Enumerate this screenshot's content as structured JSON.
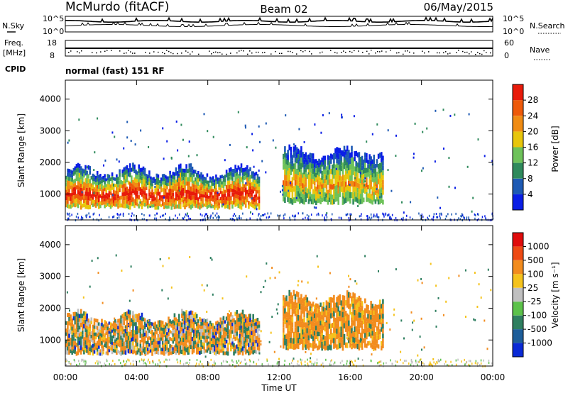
{
  "header": {
    "station": "McMurdo (fitACF)",
    "beam": "Beam 02",
    "date": "06/May/2015"
  },
  "noise_panel": {
    "left_label": "N.Sky",
    "right_label": "N.Search",
    "tick_left_top": "10^5",
    "tick_left_bottom": "10^0",
    "tick_right_top": "10^5",
    "tick_right_bottom": "10^0"
  },
  "freq_panel": {
    "left_label_line1": "Freq.",
    "left_label_line2": "[MHz]",
    "right_label": "Nave",
    "tick_left_top": "18",
    "tick_left_bottom": "8",
    "tick_right_top": "60",
    "tick_right_bottom": "0"
  },
  "cpid": {
    "label": "CPID",
    "value": "normal (fast) 151 RF"
  },
  "chart_data": [
    {
      "type": "heatmap",
      "ylabel": "Slant Range [km]",
      "xlabel": "Time UT",
      "x_ticks": [
        "00:00",
        "04:00",
        "08:00",
        "12:00",
        "16:00",
        "20:00",
        "00:00"
      ],
      "y_ticks": [
        "1000",
        "2000",
        "3000",
        "4000"
      ],
      "ylim": [
        180,
        4600
      ],
      "xlim_hours": [
        0,
        24
      ],
      "colorbar": {
        "label": "Power [dB]",
        "ticks": [
          "4",
          "8",
          "12",
          "16",
          "20",
          "24",
          "28"
        ],
        "range": [
          0,
          32
        ],
        "colors": [
          "#0a1ee6",
          "#1e5ab4",
          "#2f8a5c",
          "#6ec25a",
          "#e8c60c",
          "#f08c14",
          "#ee5a0a",
          "#e81b0a"
        ]
      },
      "echo_bands": [
        {
          "start_h": 0.0,
          "end_h": 10.9,
          "low_km": 500,
          "high_km": 1700,
          "level": "strong"
        },
        {
          "start_h": 12.2,
          "end_h": 17.9,
          "low_km": 650,
          "high_km": 2300,
          "level": "patchy"
        }
      ]
    },
    {
      "type": "heatmap",
      "ylabel": "Slant Range [km]",
      "xlabel": "Time UT",
      "x_ticks": [
        "00:00",
        "04:00",
        "08:00",
        "12:00",
        "16:00",
        "20:00",
        "00:00"
      ],
      "y_ticks": [
        "1000",
        "2000",
        "3000",
        "4000"
      ],
      "ylim": [
        180,
        4600
      ],
      "xlim_hours": [
        0,
        24
      ],
      "colorbar": {
        "label": "Velocity [m s⁻¹]",
        "ticks": [
          "1000",
          "500",
          "100",
          "25",
          "-25",
          "-100",
          "-500",
          "-1000"
        ],
        "colors": [
          "#0a2ad6",
          "#1e5e9a",
          "#2f7f60",
          "#5cc24a",
          "#c0c0c0",
          "#f5c31c",
          "#f28c1e",
          "#ee4a14",
          "#e00c0c"
        ]
      },
      "echo_bands": [
        {
          "start_h": 0.0,
          "end_h": 10.9,
          "low_km": 500,
          "high_km": 1700,
          "level": "mixed"
        },
        {
          "start_h": 12.2,
          "end_h": 17.9,
          "low_km": 650,
          "high_km": 2300,
          "level": "away"
        }
      ]
    }
  ]
}
